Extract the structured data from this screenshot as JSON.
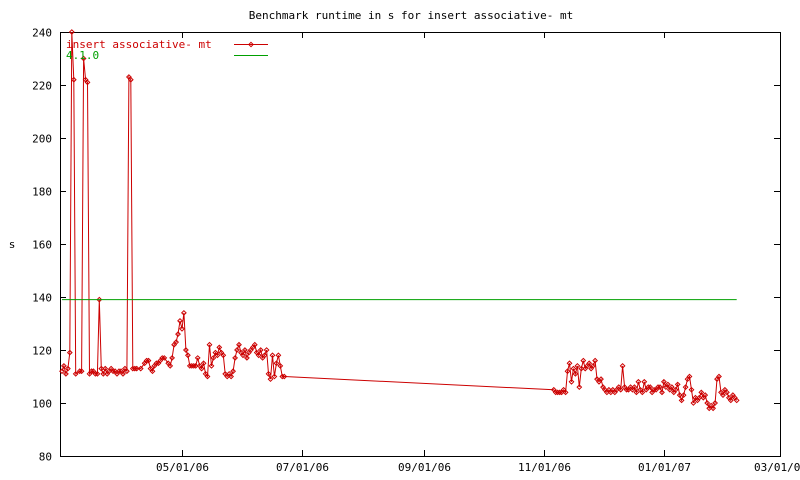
{
  "chart_data": {
    "type": "line",
    "title": "Benchmark runtime in s for insert associative-  mt",
    "xlabel": "",
    "ylabel": "s",
    "xlim": [
      "2006-02-28",
      "2007-03-01"
    ],
    "ylim": [
      80,
      240
    ],
    "yticks": [
      80,
      100,
      120,
      140,
      160,
      180,
      200,
      220,
      240
    ],
    "xticks": [
      {
        "date": "2006-05-01",
        "label": "05/01/06"
      },
      {
        "date": "2006-07-01",
        "label": "07/01/06"
      },
      {
        "date": "2006-09-01",
        "label": "09/01/06"
      },
      {
        "date": "2006-11-01",
        "label": "11/01/06"
      },
      {
        "date": "2007-01-01",
        "label": "01/01/07"
      },
      {
        "date": "2007-03-01",
        "label": "03/01/07"
      }
    ],
    "legend_position": "top-left",
    "grid": false,
    "series": [
      {
        "name": "insert associative-  mt",
        "color": "#cc0000",
        "marker": "diamond",
        "points": [
          [
            "2006-03-01",
            112
          ],
          [
            "2006-03-02",
            114
          ],
          [
            "2006-03-03",
            111
          ],
          [
            "2006-03-04",
            113
          ],
          [
            "2006-03-05",
            119
          ],
          [
            "2006-03-06",
            240
          ],
          [
            "2006-03-07",
            222
          ],
          [
            "2006-03-08",
            111
          ],
          [
            "2006-03-10",
            112
          ],
          [
            "2006-03-11",
            112
          ],
          [
            "2006-03-12",
            230
          ],
          [
            "2006-03-13",
            222
          ],
          [
            "2006-03-14",
            221
          ],
          [
            "2006-03-15",
            111
          ],
          [
            "2006-03-16",
            112
          ],
          [
            "2006-03-17",
            112
          ],
          [
            "2006-03-18",
            111
          ],
          [
            "2006-03-19",
            111
          ],
          [
            "2006-03-20",
            139
          ],
          [
            "2006-03-21",
            113
          ],
          [
            "2006-03-22",
            111
          ],
          [
            "2006-03-23",
            113
          ],
          [
            "2006-03-24",
            111
          ],
          [
            "2006-03-25",
            112
          ],
          [
            "2006-03-26",
            113
          ],
          [
            "2006-03-27",
            112
          ],
          [
            "2006-03-28",
            112
          ],
          [
            "2006-03-29",
            111
          ],
          [
            "2006-03-30",
            112
          ],
          [
            "2006-03-31",
            112
          ],
          [
            "2006-04-01",
            111
          ],
          [
            "2006-04-02",
            113
          ],
          [
            "2006-04-03",
            112
          ],
          [
            "2006-04-04",
            223
          ],
          [
            "2006-04-05",
            222
          ],
          [
            "2006-04-06",
            113
          ],
          [
            "2006-04-07",
            113
          ],
          [
            "2006-04-08",
            113
          ],
          [
            "2006-04-10",
            113
          ],
          [
            "2006-04-12",
            115
          ],
          [
            "2006-04-13",
            116
          ],
          [
            "2006-04-14",
            116
          ],
          [
            "2006-04-15",
            113
          ],
          [
            "2006-04-16",
            112
          ],
          [
            "2006-04-17",
            114
          ],
          [
            "2006-04-18",
            115
          ],
          [
            "2006-04-19",
            115
          ],
          [
            "2006-04-20",
            116
          ],
          [
            "2006-04-21",
            117
          ],
          [
            "2006-04-22",
            117
          ],
          [
            "2006-04-24",
            115
          ],
          [
            "2006-04-25",
            114
          ],
          [
            "2006-04-26",
            117
          ],
          [
            "2006-04-27",
            122
          ],
          [
            "2006-04-28",
            123
          ],
          [
            "2006-04-29",
            126
          ],
          [
            "2006-04-30",
            131
          ],
          [
            "2006-05-01",
            128
          ],
          [
            "2006-05-02",
            134
          ],
          [
            "2006-05-03",
            120
          ],
          [
            "2006-05-04",
            118
          ],
          [
            "2006-05-05",
            114
          ],
          [
            "2006-05-06",
            114
          ],
          [
            "2006-05-07",
            114
          ],
          [
            "2006-05-08",
            114
          ],
          [
            "2006-05-09",
            117
          ],
          [
            "2006-05-10",
            114
          ],
          [
            "2006-05-11",
            113
          ],
          [
            "2006-05-12",
            115
          ],
          [
            "2006-05-13",
            111
          ],
          [
            "2006-05-14",
            110
          ],
          [
            "2006-05-15",
            122
          ],
          [
            "2006-05-16",
            114
          ],
          [
            "2006-05-17",
            117
          ],
          [
            "2006-05-18",
            119
          ],
          [
            "2006-05-19",
            118
          ],
          [
            "2006-05-20",
            121
          ],
          [
            "2006-05-21",
            119
          ],
          [
            "2006-05-22",
            118
          ],
          [
            "2006-05-23",
            111
          ],
          [
            "2006-05-24",
            110
          ],
          [
            "2006-05-25",
            111
          ],
          [
            "2006-05-26",
            110
          ],
          [
            "2006-05-27",
            112
          ],
          [
            "2006-05-28",
            117
          ],
          [
            "2006-05-29",
            120
          ],
          [
            "2006-05-30",
            122
          ],
          [
            "2006-05-31",
            119
          ],
          [
            "2006-06-01",
            118
          ],
          [
            "2006-06-02",
            120
          ],
          [
            "2006-06-03",
            117
          ],
          [
            "2006-06-04",
            119
          ],
          [
            "2006-06-05",
            120
          ],
          [
            "2006-06-06",
            121
          ],
          [
            "2006-06-07",
            122
          ],
          [
            "2006-06-08",
            119
          ],
          [
            "2006-06-09",
            118
          ],
          [
            "2006-06-10",
            120
          ],
          [
            "2006-06-11",
            117
          ],
          [
            "2006-06-12",
            118
          ],
          [
            "2006-06-13",
            120
          ],
          [
            "2006-06-14",
            111
          ],
          [
            "2006-06-15",
            109
          ],
          [
            "2006-06-16",
            118
          ],
          [
            "2006-06-17",
            110
          ],
          [
            "2006-06-18",
            115
          ],
          [
            "2006-06-19",
            118
          ],
          [
            "2006-06-20",
            114
          ],
          [
            "2006-06-21",
            110
          ],
          [
            "2006-06-22",
            110
          ],
          [
            "2006-11-06",
            105
          ],
          [
            "2006-11-07",
            104
          ],
          [
            "2006-11-08",
            104
          ],
          [
            "2006-11-09",
            104
          ],
          [
            "2006-11-10",
            104
          ],
          [
            "2006-11-11",
            105
          ],
          [
            "2006-11-12",
            104
          ],
          [
            "2006-11-13",
            112
          ],
          [
            "2006-11-14",
            115
          ],
          [
            "2006-11-15",
            108
          ],
          [
            "2006-11-16",
            113
          ],
          [
            "2006-11-17",
            111
          ],
          [
            "2006-11-18",
            114
          ],
          [
            "2006-11-19",
            106
          ],
          [
            "2006-11-20",
            113
          ],
          [
            "2006-11-21",
            116
          ],
          [
            "2006-11-22",
            113
          ],
          [
            "2006-11-23",
            114
          ],
          [
            "2006-11-24",
            115
          ],
          [
            "2006-11-25",
            113
          ],
          [
            "2006-11-26",
            114
          ],
          [
            "2006-11-27",
            116
          ],
          [
            "2006-11-28",
            109
          ],
          [
            "2006-11-29",
            108
          ],
          [
            "2006-11-30",
            109
          ],
          [
            "2006-12-01",
            106
          ],
          [
            "2006-12-02",
            105
          ],
          [
            "2006-12-03",
            104
          ],
          [
            "2006-12-04",
            105
          ],
          [
            "2006-12-05",
            104
          ],
          [
            "2006-12-06",
            105
          ],
          [
            "2006-12-07",
            104
          ],
          [
            "2006-12-08",
            105
          ],
          [
            "2006-12-09",
            106
          ],
          [
            "2006-12-10",
            105
          ],
          [
            "2006-12-11",
            114
          ],
          [
            "2006-12-12",
            106
          ],
          [
            "2006-12-13",
            105
          ],
          [
            "2006-12-14",
            105
          ],
          [
            "2006-12-15",
            106
          ],
          [
            "2006-12-16",
            105
          ],
          [
            "2006-12-17",
            106
          ],
          [
            "2006-12-18",
            104
          ],
          [
            "2006-12-19",
            108
          ],
          [
            "2006-12-20",
            105
          ],
          [
            "2006-12-21",
            104
          ],
          [
            "2006-12-22",
            108
          ],
          [
            "2006-12-23",
            105
          ],
          [
            "2006-12-24",
            106
          ],
          [
            "2006-12-25",
            106
          ],
          [
            "2006-12-26",
            104
          ],
          [
            "2006-12-27",
            105
          ],
          [
            "2006-12-28",
            105
          ],
          [
            "2006-12-29",
            106
          ],
          [
            "2006-12-30",
            106
          ],
          [
            "2006-12-31",
            104
          ],
          [
            "2007-01-01",
            108
          ],
          [
            "2007-01-02",
            106
          ],
          [
            "2007-01-03",
            107
          ],
          [
            "2007-01-04",
            105
          ],
          [
            "2007-01-05",
            106
          ],
          [
            "2007-01-06",
            104
          ],
          [
            "2007-01-07",
            105
          ],
          [
            "2007-01-08",
            107
          ],
          [
            "2007-01-09",
            103
          ],
          [
            "2007-01-10",
            101
          ],
          [
            "2007-01-11",
            103
          ],
          [
            "2007-01-12",
            106
          ],
          [
            "2007-01-13",
            109
          ],
          [
            "2007-01-14",
            110
          ],
          [
            "2007-01-15",
            105
          ],
          [
            "2007-01-16",
            100
          ],
          [
            "2007-01-17",
            102
          ],
          [
            "2007-01-18",
            101
          ],
          [
            "2007-01-19",
            102
          ],
          [
            "2007-01-20",
            104
          ],
          [
            "2007-01-21",
            102
          ],
          [
            "2007-01-22",
            103
          ],
          [
            "2007-01-23",
            100
          ],
          [
            "2007-01-24",
            98
          ],
          [
            "2007-01-25",
            99
          ],
          [
            "2007-01-26",
            98
          ],
          [
            "2007-01-27",
            100
          ],
          [
            "2007-01-28",
            109
          ],
          [
            "2007-01-29",
            110
          ],
          [
            "2007-01-30",
            104
          ],
          [
            "2007-01-31",
            103
          ],
          [
            "2007-02-01",
            105
          ],
          [
            "2007-02-02",
            104
          ],
          [
            "2007-02-03",
            102
          ],
          [
            "2007-02-04",
            101
          ],
          [
            "2007-02-05",
            103
          ],
          [
            "2007-02-06",
            102
          ],
          [
            "2007-02-07",
            101
          ]
        ]
      },
      {
        "name": "4.1.0",
        "color": "#00a000",
        "marker": "none",
        "points": [
          [
            "2006-03-01",
            139
          ],
          [
            "2007-02-07",
            139
          ]
        ]
      }
    ]
  }
}
